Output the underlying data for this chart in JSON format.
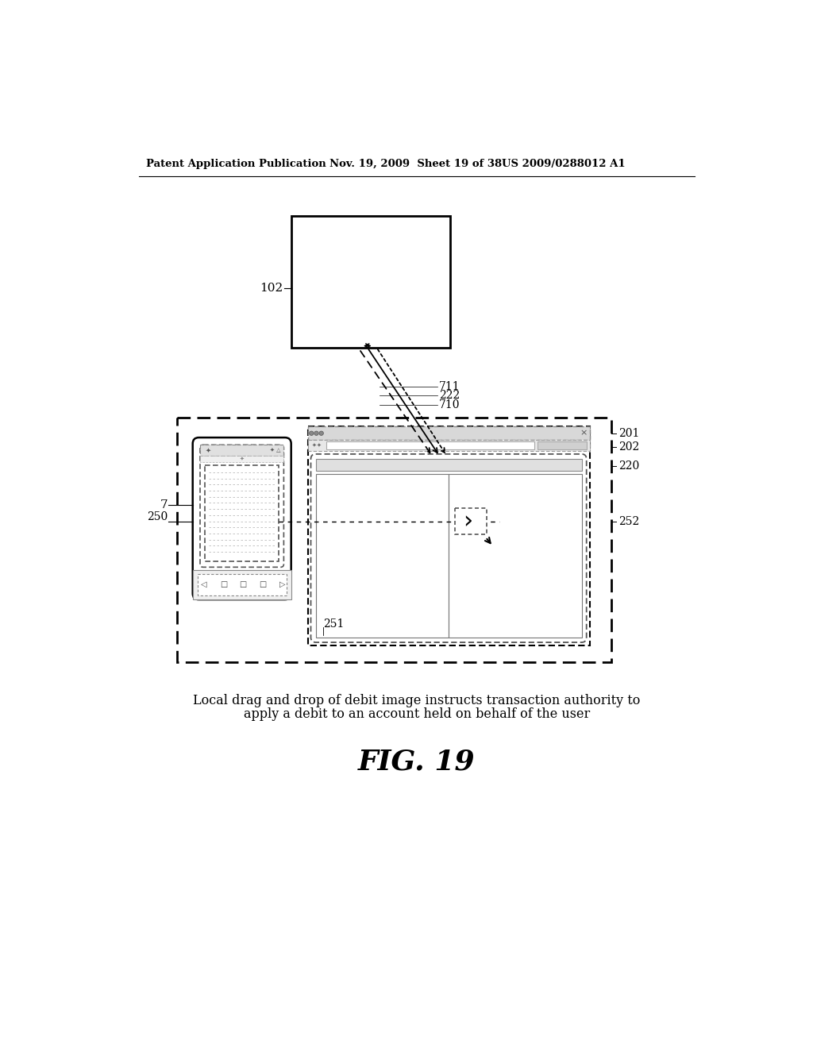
{
  "header_left": "Patent Application Publication",
  "header_mid": "Nov. 19, 2009  Sheet 19 of 38",
  "header_right": "US 2009/0288012 A1",
  "caption_line1": "Local drag and drop of debit image instructs transaction authority to",
  "caption_line2": "apply a debit to an account held on behalf of the user",
  "fig_label": "FIG. 19",
  "bg_color": "#ffffff",
  "label_102": "102",
  "label_7": "7",
  "label_250": "250",
  "label_251": "251",
  "label_252": "252",
  "label_201": "201",
  "label_202": "202",
  "label_220": "220",
  "label_710": "710",
  "label_711": "711",
  "label_222": "222"
}
